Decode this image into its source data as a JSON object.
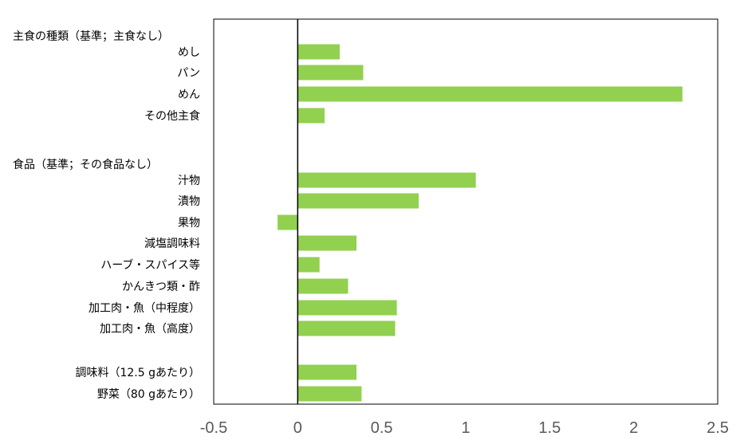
{
  "chart_data": {
    "type": "bar",
    "orientation": "horizontal",
    "title": "",
    "xlabel": "",
    "ylabel": "",
    "xlim": [
      -0.5,
      2.5
    ],
    "x_ticks": [
      "-0.5",
      "0",
      "0.5",
      "1",
      "1.5",
      "2",
      "2.5"
    ],
    "grid": false,
    "legend": "none",
    "bar_color": "#92D050",
    "categories": [
      {
        "label": "主食の種類（基準；主食なし）",
        "value": null
      },
      {
        "label": "めし",
        "value": 0.25
      },
      {
        "label": "パン",
        "value": 0.39
      },
      {
        "label": "めん",
        "value": 2.29
      },
      {
        "label": "その他主食",
        "value": 0.16
      },
      {
        "label": "",
        "value": null
      },
      {
        "label": "食品（基準；その食品なし）",
        "value": null
      },
      {
        "label": "汁物",
        "value": 1.06
      },
      {
        "label": "漬物",
        "value": 0.72
      },
      {
        "label": "果物",
        "value": -0.12
      },
      {
        "label": "減塩調味料",
        "value": 0.35
      },
      {
        "label": "ハーブ・スパイス等",
        "value": 0.13
      },
      {
        "label": "かんきつ類・酢",
        "value": 0.3
      },
      {
        "label": "加工肉・魚（中程度）",
        "value": 0.59
      },
      {
        "label": "加工肉・魚（高度）",
        "value": 0.58
      },
      {
        "label": "",
        "value": null
      },
      {
        "label": "調味料（12.5 gあたり）",
        "value": 0.35
      },
      {
        "label": "野菜（80 gあたり）",
        "value": 0.38
      }
    ]
  }
}
